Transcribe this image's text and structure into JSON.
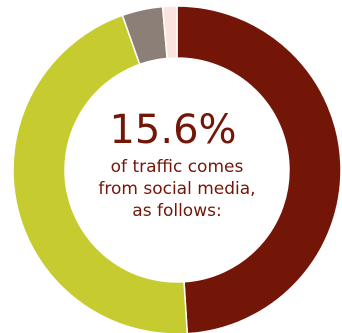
{
  "chart_data": {
    "type": "pie",
    "variant": "donut",
    "slices": [
      {
        "value": 49.0,
        "color": "#731608"
      },
      {
        "value": 45.6,
        "color": "#c6cc2f"
      },
      {
        "value": 4.0,
        "color": "#8b7f78"
      },
      {
        "value": 1.4,
        "color": "#fbe3df"
      }
    ],
    "center_value": "15.6%",
    "center_lines": [
      "of traffic comes",
      "from social media,",
      "as follows:"
    ]
  },
  "colors": {
    "text": "#731608",
    "background": "#ffffff"
  }
}
